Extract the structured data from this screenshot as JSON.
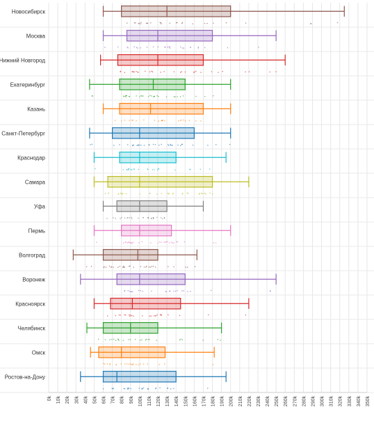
{
  "chart_data": {
    "type": "boxplot",
    "orientation": "horizontal",
    "title": "",
    "xlabel": "",
    "ylabel": "",
    "xlim": [
      0,
      350000
    ],
    "grid": true,
    "x_ticks": [
      0,
      10000,
      20000,
      30000,
      40000,
      50000,
      60000,
      70000,
      80000,
      90000,
      100000,
      110000,
      120000,
      130000,
      140000,
      150000,
      160000,
      170000,
      180000,
      190000,
      200000,
      210000,
      220000,
      230000,
      240000,
      250000,
      260000,
      270000,
      280000,
      290000,
      300000,
      310000,
      320000,
      330000,
      340000,
      350000
    ],
    "x_tick_labels": [
      "0k",
      "10k",
      "20k",
      "30k",
      "40k",
      "50k",
      "60k",
      "70k",
      "80k",
      "90k",
      "100k",
      "110k",
      "120k",
      "130k",
      "140k",
      "150k",
      "160k",
      "170k",
      "180k",
      "190k",
      "200k",
      "210k",
      "220k",
      "230k",
      "240k",
      "250k",
      "260k",
      "270k",
      "280k",
      "290k",
      "300k",
      "310k",
      "320k",
      "330k",
      "340k",
      "350k"
    ],
    "groups": [
      {
        "name": "Новосибирск",
        "color": "#8c564b",
        "min": 60000,
        "q1": 80000,
        "median": 130000,
        "q3": 200000,
        "max": 325000
      },
      {
        "name": "Москва",
        "color": "#9467bd",
        "min": 60000,
        "q1": 86000,
        "median": 120000,
        "q3": 180000,
        "max": 250000
      },
      {
        "name": "Нижний Новгород",
        "color": "#d62728",
        "min": 57000,
        "q1": 76000,
        "median": 120000,
        "q3": 170000,
        "max": 260000
      },
      {
        "name": "Екатеринбург",
        "color": "#2ca02c",
        "min": 45000,
        "q1": 78000,
        "median": 115000,
        "q3": 150000,
        "max": 200000
      },
      {
        "name": "Казань",
        "color": "#ff7f0e",
        "min": 60000,
        "q1": 78000,
        "median": 112000,
        "q3": 170000,
        "max": 200000
      },
      {
        "name": "Санкт-Петербург",
        "color": "#1f77b4",
        "min": 45000,
        "q1": 70000,
        "median": 100000,
        "q3": 160000,
        "max": 200000
      },
      {
        "name": "Краснодар",
        "color": "#17becf",
        "min": 50000,
        "q1": 78000,
        "median": 100000,
        "q3": 140000,
        "max": 195000
      },
      {
        "name": "Самара",
        "color": "#bcbd22",
        "min": 50000,
        "q1": 65000,
        "median": 100000,
        "q3": 180000,
        "max": 220000
      },
      {
        "name": "Уфа",
        "color": "#7f7f7f",
        "min": 60000,
        "q1": 75000,
        "median": 100000,
        "q3": 130000,
        "max": 170000
      },
      {
        "name": "Пермь",
        "color": "#e377c2",
        "min": 50000,
        "q1": 80000,
        "median": 100000,
        "q3": 135000,
        "max": 200000
      },
      {
        "name": "Волгоград",
        "color": "#8c564b",
        "min": 27000,
        "q1": 60000,
        "median": 98000,
        "q3": 120000,
        "max": 163000
      },
      {
        "name": "Воронеж",
        "color": "#9467bd",
        "min": 35000,
        "q1": 75000,
        "median": 100000,
        "q3": 150000,
        "max": 250000
      },
      {
        "name": "Красноярск",
        "color": "#d62728",
        "min": 50000,
        "q1": 68000,
        "median": 92000,
        "q3": 145000,
        "max": 220000
      },
      {
        "name": "Челябинск",
        "color": "#2ca02c",
        "min": 42000,
        "q1": 60000,
        "median": 90000,
        "q3": 120000,
        "max": 190000
      },
      {
        "name": "Омск",
        "color": "#ff7f0e",
        "min": 46000,
        "q1": 55000,
        "median": 80000,
        "q3": 128000,
        "max": 182000
      },
      {
        "name": "Ростов-на-Дону",
        "color": "#1f77b4",
        "min": 35000,
        "q1": 60000,
        "median": 75000,
        "q3": 140000,
        "max": 195000
      }
    ]
  }
}
